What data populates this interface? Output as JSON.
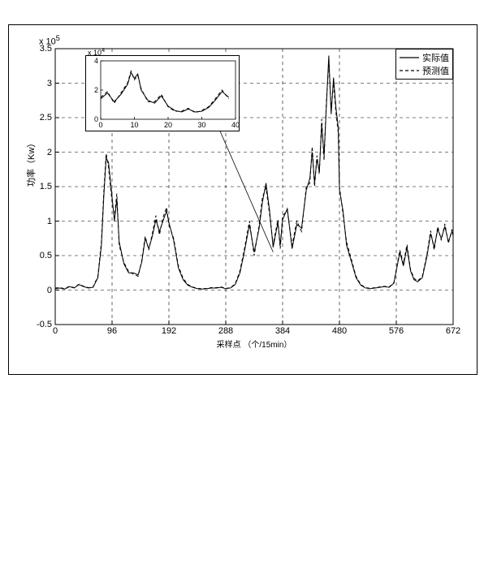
{
  "chart": {
    "type": "line",
    "background_color": "#ffffff",
    "grid_color": "#000000",
    "grid_dash": "4 4",
    "axis_color": "#000000",
    "ylabel": "功率（Kw）",
    "xlabel": "采样点 （个/15min）",
    "exp_label": "x 10",
    "exp_power": "5",
    "label_fontsize": 11,
    "tick_fontsize": 11,
    "xlim": [
      0,
      672
    ],
    "ylim": [
      -0.5,
      3.5
    ],
    "xtick_step": 96,
    "ytick_step": 0.5,
    "xticks": [
      "0",
      "96",
      "192",
      "288",
      "384",
      "480",
      "576",
      "672"
    ],
    "yticks": [
      "-0.5",
      "0",
      "0.5",
      "1",
      "1.5",
      "2",
      "2.5",
      "3",
      "3.5"
    ],
    "series": [
      {
        "name": "actual",
        "label": "实际值",
        "color": "#000000",
        "line_width": 1,
        "dash": "none",
        "data": [
          [
            0,
            0.02
          ],
          [
            8,
            0.03
          ],
          [
            16,
            0.015
          ],
          [
            24,
            0.05
          ],
          [
            32,
            0.03
          ],
          [
            40,
            0.08
          ],
          [
            48,
            0.05
          ],
          [
            56,
            0.03
          ],
          [
            64,
            0.04
          ],
          [
            72,
            0.18
          ],
          [
            78,
            0.65
          ],
          [
            82,
            1.35
          ],
          [
            86,
            1.92
          ],
          [
            90,
            1.85
          ],
          [
            96,
            1.35
          ],
          [
            100,
            1.0
          ],
          [
            104,
            1.32
          ],
          [
            108,
            0.7
          ],
          [
            116,
            0.38
          ],
          [
            124,
            0.25
          ],
          [
            132,
            0.25
          ],
          [
            140,
            0.22
          ],
          [
            146,
            0.4
          ],
          [
            152,
            0.75
          ],
          [
            158,
            0.6
          ],
          [
            164,
            0.78
          ],
          [
            170,
            1.02
          ],
          [
            176,
            0.85
          ],
          [
            182,
            1.0
          ],
          [
            188,
            1.15
          ],
          [
            192,
            0.98
          ],
          [
            200,
            0.72
          ],
          [
            208,
            0.32
          ],
          [
            216,
            0.15
          ],
          [
            224,
            0.07
          ],
          [
            232,
            0.04
          ],
          [
            240,
            0.02
          ],
          [
            248,
            0.015
          ],
          [
            256,
            0.02
          ],
          [
            264,
            0.03
          ],
          [
            272,
            0.03
          ],
          [
            280,
            0.04
          ],
          [
            288,
            0.02
          ],
          [
            296,
            0.03
          ],
          [
            304,
            0.08
          ],
          [
            312,
            0.25
          ],
          [
            320,
            0.58
          ],
          [
            328,
            0.95
          ],
          [
            336,
            0.55
          ],
          [
            344,
            0.88
          ],
          [
            350,
            1.28
          ],
          [
            356,
            1.55
          ],
          [
            362,
            1.15
          ],
          [
            368,
            0.62
          ],
          [
            376,
            0.98
          ],
          [
            380,
            0.65
          ],
          [
            384,
            1.02
          ],
          [
            392,
            1.18
          ],
          [
            400,
            0.6
          ],
          [
            408,
            0.95
          ],
          [
            416,
            0.9
          ],
          [
            424,
            1.45
          ],
          [
            430,
            1.62
          ],
          [
            434,
            2.0
          ],
          [
            438,
            1.55
          ],
          [
            442,
            1.9
          ],
          [
            446,
            1.72
          ],
          [
            450,
            2.4
          ],
          [
            454,
            1.95
          ],
          [
            458,
            2.68
          ],
          [
            462,
            3.4
          ],
          [
            466,
            2.55
          ],
          [
            470,
            3.08
          ],
          [
            474,
            2.65
          ],
          [
            478,
            2.35
          ],
          [
            480,
            1.45
          ],
          [
            486,
            1.15
          ],
          [
            492,
            0.65
          ],
          [
            500,
            0.42
          ],
          [
            508,
            0.18
          ],
          [
            516,
            0.07
          ],
          [
            524,
            0.03
          ],
          [
            532,
            0.02
          ],
          [
            540,
            0.03
          ],
          [
            548,
            0.04
          ],
          [
            556,
            0.05
          ],
          [
            564,
            0.04
          ],
          [
            572,
            0.1
          ],
          [
            576,
            0.28
          ],
          [
            582,
            0.55
          ],
          [
            588,
            0.35
          ],
          [
            594,
            0.62
          ],
          [
            600,
            0.28
          ],
          [
            606,
            0.15
          ],
          [
            612,
            0.12
          ],
          [
            620,
            0.18
          ],
          [
            628,
            0.5
          ],
          [
            634,
            0.82
          ],
          [
            640,
            0.62
          ],
          [
            646,
            0.88
          ],
          [
            652,
            0.75
          ],
          [
            658,
            0.92
          ],
          [
            664,
            0.7
          ],
          [
            670,
            0.85
          ],
          [
            672,
            0.8
          ]
        ]
      },
      {
        "name": "predicted",
        "label": "预测值",
        "color": "#000000",
        "line_width": 1,
        "dash": "4 3",
        "data": [
          [
            0,
            0.03
          ],
          [
            8,
            0.035
          ],
          [
            16,
            0.02
          ],
          [
            24,
            0.055
          ],
          [
            32,
            0.035
          ],
          [
            40,
            0.085
          ],
          [
            48,
            0.055
          ],
          [
            56,
            0.035
          ],
          [
            64,
            0.045
          ],
          [
            72,
            0.2
          ],
          [
            78,
            0.7
          ],
          [
            82,
            1.42
          ],
          [
            86,
            1.98
          ],
          [
            90,
            1.78
          ],
          [
            96,
            1.28
          ],
          [
            100,
            1.05
          ],
          [
            104,
            1.4
          ],
          [
            108,
            0.65
          ],
          [
            116,
            0.4
          ],
          [
            124,
            0.27
          ],
          [
            132,
            0.23
          ],
          [
            140,
            0.2
          ],
          [
            146,
            0.42
          ],
          [
            152,
            0.78
          ],
          [
            158,
            0.58
          ],
          [
            164,
            0.82
          ],
          [
            170,
            1.08
          ],
          [
            176,
            0.8
          ],
          [
            182,
            1.05
          ],
          [
            188,
            1.2
          ],
          [
            192,
            0.95
          ],
          [
            200,
            0.75
          ],
          [
            208,
            0.35
          ],
          [
            216,
            0.17
          ],
          [
            224,
            0.08
          ],
          [
            232,
            0.045
          ],
          [
            240,
            0.025
          ],
          [
            248,
            0.02
          ],
          [
            256,
            0.025
          ],
          [
            264,
            0.035
          ],
          [
            272,
            0.035
          ],
          [
            280,
            0.045
          ],
          [
            288,
            0.025
          ],
          [
            296,
            0.035
          ],
          [
            304,
            0.09
          ],
          [
            312,
            0.28
          ],
          [
            320,
            0.62
          ],
          [
            328,
            1.0
          ],
          [
            336,
            0.5
          ],
          [
            344,
            0.92
          ],
          [
            350,
            1.35
          ],
          [
            356,
            1.48
          ],
          [
            362,
            1.1
          ],
          [
            368,
            0.66
          ],
          [
            376,
            1.02
          ],
          [
            380,
            0.6
          ],
          [
            384,
            1.08
          ],
          [
            392,
            1.15
          ],
          [
            400,
            0.65
          ],
          [
            408,
            1.0
          ],
          [
            416,
            0.85
          ],
          [
            424,
            1.5
          ],
          [
            430,
            1.55
          ],
          [
            434,
            2.08
          ],
          [
            438,
            1.5
          ],
          [
            442,
            1.95
          ],
          [
            446,
            1.68
          ],
          [
            450,
            2.48
          ],
          [
            454,
            1.88
          ],
          [
            458,
            2.75
          ],
          [
            462,
            3.3
          ],
          [
            466,
            2.62
          ],
          [
            470,
            3.0
          ],
          [
            474,
            2.58
          ],
          [
            478,
            2.28
          ],
          [
            480,
            1.5
          ],
          [
            486,
            1.1
          ],
          [
            492,
            0.7
          ],
          [
            500,
            0.45
          ],
          [
            508,
            0.2
          ],
          [
            516,
            0.08
          ],
          [
            524,
            0.035
          ],
          [
            532,
            0.025
          ],
          [
            540,
            0.035
          ],
          [
            548,
            0.045
          ],
          [
            556,
            0.055
          ],
          [
            564,
            0.045
          ],
          [
            572,
            0.11
          ],
          [
            576,
            0.3
          ],
          [
            582,
            0.58
          ],
          [
            588,
            0.38
          ],
          [
            594,
            0.66
          ],
          [
            600,
            0.3
          ],
          [
            606,
            0.17
          ],
          [
            612,
            0.13
          ],
          [
            620,
            0.2
          ],
          [
            628,
            0.53
          ],
          [
            634,
            0.86
          ],
          [
            640,
            0.58
          ],
          [
            646,
            0.92
          ],
          [
            652,
            0.72
          ],
          [
            658,
            0.96
          ],
          [
            664,
            0.68
          ],
          [
            670,
            0.88
          ],
          [
            672,
            0.78
          ]
        ]
      }
    ],
    "arrow": {
      "from_x": 368,
      "from_y": 0.55,
      "to_inset": true,
      "color": "#000000"
    },
    "inset": {
      "xlim": [
        0,
        40
      ],
      "ylim": [
        0,
        4
      ],
      "xtick_step": 10,
      "ytick_step": 2,
      "xticks": [
        "0",
        "10",
        "20",
        "30",
        "40"
      ],
      "yticks": [
        "0",
        "2",
        "4"
      ],
      "exp_label": "x 10",
      "exp_power": "4",
      "series": [
        {
          "name": "actual",
          "color": "#000000",
          "line_width": 1,
          "dash": "none",
          "data": [
            [
              0,
              1.4
            ],
            [
              2,
              1.8
            ],
            [
              4,
              1.2
            ],
            [
              6,
              1.7
            ],
            [
              8,
              2.4
            ],
            [
              9,
              3.2
            ],
            [
              10,
              2.8
            ],
            [
              11,
              3.1
            ],
            [
              12,
              2.0
            ],
            [
              14,
              1.3
            ],
            [
              16,
              1.1
            ],
            [
              18,
              1.6
            ],
            [
              20,
              0.9
            ],
            [
              22,
              0.6
            ],
            [
              24,
              0.5
            ],
            [
              26,
              0.7
            ],
            [
              28,
              0.5
            ],
            [
              30,
              0.55
            ],
            [
              32,
              0.8
            ],
            [
              34,
              1.3
            ],
            [
              36,
              1.9
            ],
            [
              38,
              1.5
            ]
          ]
        },
        {
          "name": "predicted",
          "color": "#000000",
          "line_width": 1,
          "dash": "4 3",
          "data": [
            [
              0,
              1.5
            ],
            [
              2,
              1.9
            ],
            [
              4,
              1.1
            ],
            [
              6,
              1.8
            ],
            [
              8,
              2.5
            ],
            [
              9,
              3.3
            ],
            [
              10,
              2.7
            ],
            [
              11,
              3.0
            ],
            [
              12,
              2.1
            ],
            [
              14,
              1.2
            ],
            [
              16,
              1.2
            ],
            [
              18,
              1.7
            ],
            [
              20,
              0.85
            ],
            [
              22,
              0.55
            ],
            [
              24,
              0.55
            ],
            [
              26,
              0.75
            ],
            [
              28,
              0.45
            ],
            [
              30,
              0.6
            ],
            [
              32,
              0.85
            ],
            [
              34,
              1.4
            ],
            [
              36,
              2.0
            ],
            [
              38,
              1.4
            ]
          ]
        }
      ]
    }
  },
  "legend": {
    "items": [
      {
        "label": "实际值",
        "dash": "none"
      },
      {
        "label": "预测值",
        "dash": "4 3"
      }
    ]
  }
}
